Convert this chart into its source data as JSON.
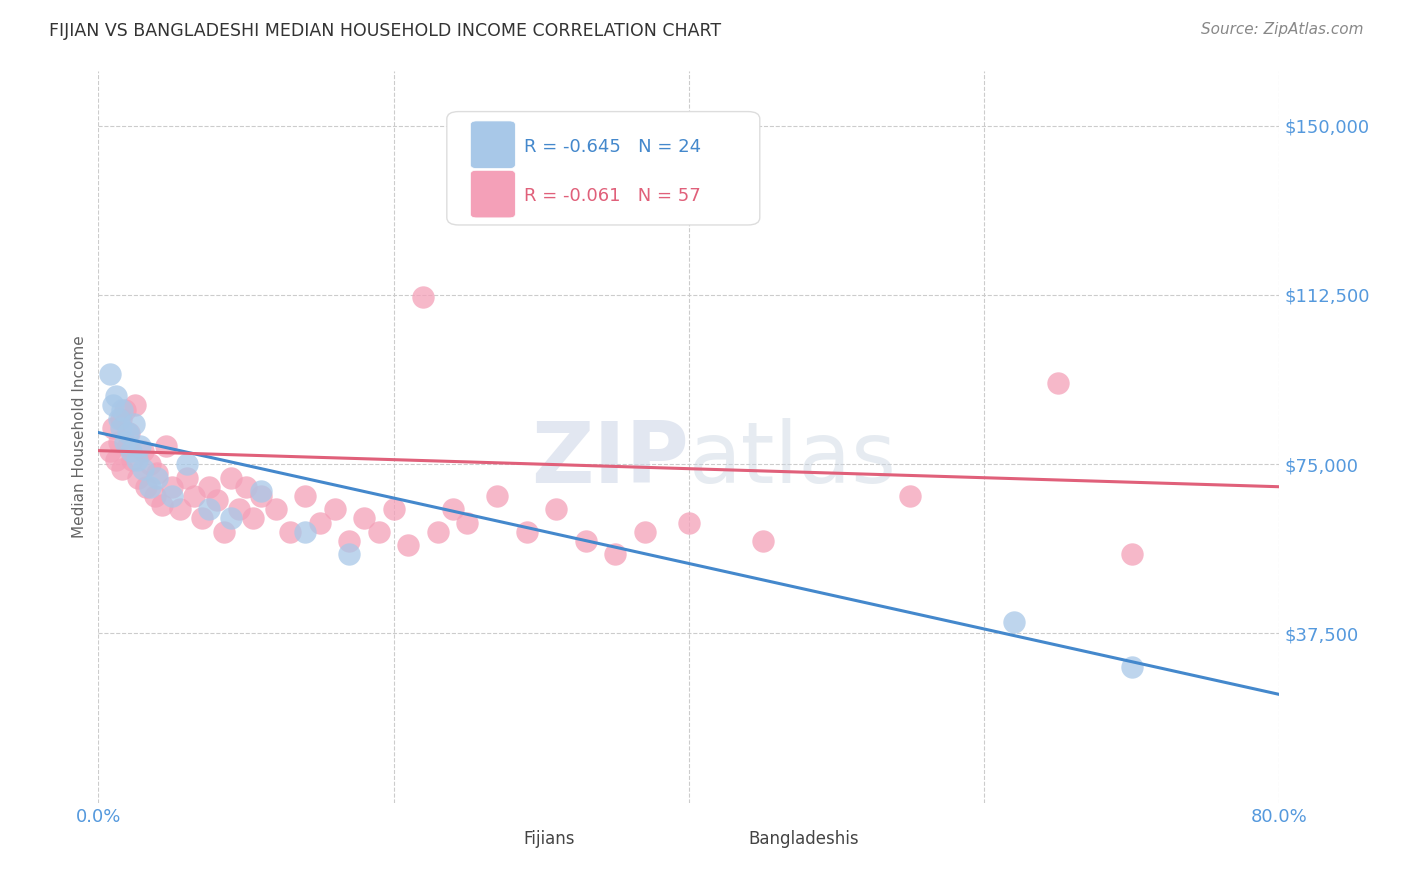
{
  "title": "FIJIAN VS BANGLADESHI MEDIAN HOUSEHOLD INCOME CORRELATION CHART",
  "source": "Source: ZipAtlas.com",
  "ylabel": "Median Household Income",
  "yticks": [
    0,
    37500,
    75000,
    112500,
    150000
  ],
  "ytick_labels": [
    "",
    "$37,500",
    "$75,000",
    "$112,500",
    "$150,000"
  ],
  "xlim": [
    0.0,
    80.0
  ],
  "ylim": [
    0,
    162000
  ],
  "fijian_R": -0.645,
  "fijian_N": 24,
  "bangladeshi_R": -0.061,
  "bangladeshi_N": 57,
  "fijian_color": "#a8c8e8",
  "bangladeshi_color": "#f4a0b8",
  "fijian_line_color": "#4488cc",
  "bangladeshi_line_color": "#e0607a",
  "background_color": "#ffffff",
  "fijian_x": [
    0.8,
    1.0,
    1.2,
    1.4,
    1.5,
    1.6,
    1.8,
    2.0,
    2.2,
    2.4,
    2.6,
    2.8,
    3.0,
    3.5,
    4.0,
    5.0,
    6.0,
    7.5,
    9.0,
    11.0,
    14.0,
    17.0,
    62.0,
    70.0
  ],
  "fijian_y": [
    95000,
    88000,
    90000,
    85000,
    83000,
    87000,
    80000,
    82000,
    78000,
    84000,
    76000,
    79000,
    74000,
    70000,
    72000,
    68000,
    75000,
    65000,
    63000,
    69000,
    60000,
    55000,
    40000,
    30000
  ],
  "bangladeshi_x": [
    0.8,
    1.0,
    1.2,
    1.4,
    1.5,
    1.6,
    1.8,
    2.0,
    2.1,
    2.3,
    2.5,
    2.7,
    3.0,
    3.2,
    3.5,
    3.8,
    4.0,
    4.3,
    4.6,
    5.0,
    5.5,
    6.0,
    6.5,
    7.0,
    7.5,
    8.0,
    8.5,
    9.0,
    9.5,
    10.0,
    10.5,
    11.0,
    12.0,
    13.0,
    14.0,
    15.0,
    16.0,
    17.0,
    18.0,
    19.0,
    20.0,
    21.0,
    22.0,
    23.0,
    24.0,
    25.0,
    27.0,
    29.0,
    31.0,
    33.0,
    35.0,
    37.0,
    40.0,
    45.0,
    55.0,
    65.0,
    70.0
  ],
  "bangladeshi_y": [
    78000,
    83000,
    76000,
    80000,
    85000,
    74000,
    87000,
    79000,
    82000,
    76000,
    88000,
    72000,
    78000,
    70000,
    75000,
    68000,
    73000,
    66000,
    79000,
    70000,
    65000,
    72000,
    68000,
    63000,
    70000,
    67000,
    60000,
    72000,
    65000,
    70000,
    63000,
    68000,
    65000,
    60000,
    68000,
    62000,
    65000,
    58000,
    63000,
    60000,
    65000,
    57000,
    112000,
    60000,
    65000,
    62000,
    68000,
    60000,
    65000,
    58000,
    55000,
    60000,
    62000,
    58000,
    68000,
    93000,
    55000
  ],
  "fijian_line_x0": 0.0,
  "fijian_line_y0": 82000,
  "fijian_line_x1": 80.0,
  "fijian_line_y1": 24000,
  "bangladeshi_line_x0": 0.0,
  "bangladeshi_line_y0": 78000,
  "bangladeshi_line_x1": 80.0,
  "bangladeshi_line_y1": 70000
}
